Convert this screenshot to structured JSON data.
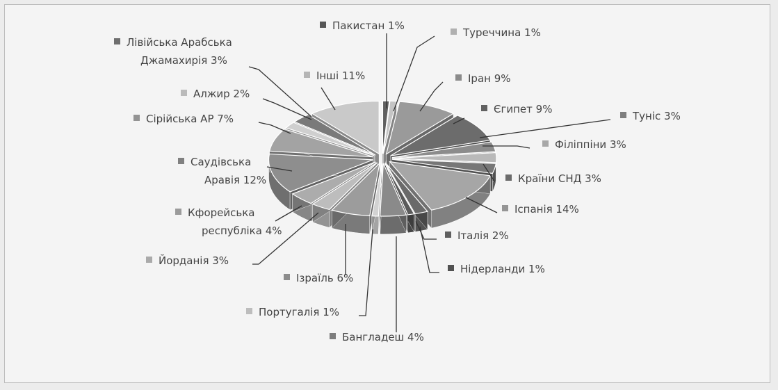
{
  "chart_data": {
    "type": "pie",
    "title": "",
    "style": "3d-exploded",
    "slices": [
      {
        "label": "Пакистан",
        "value": 1,
        "text": "Пакистан 1%",
        "color": "#5f5f5f"
      },
      {
        "label": "Туреччина",
        "value": 1,
        "text": "Туреччина 1%",
        "color": "#c4c4c4"
      },
      {
        "label": "Іран",
        "value": 9,
        "text": "Іран 9%",
        "color": "#9a9a9a"
      },
      {
        "label": "Єгипет",
        "value": 9,
        "text": "Єгипет 9%",
        "color": "#6c6c6c"
      },
      {
        "label": "Туніс",
        "value": 3,
        "text": "Туніс 3%",
        "color": "#8c8c8c"
      },
      {
        "label": "Філіппіни",
        "value": 3,
        "text": "Філіппіни 3%",
        "color": "#b9b9b9"
      },
      {
        "label": "Країни СНД",
        "value": 3,
        "text": "Країни СНД 3%",
        "color": "#777777"
      },
      {
        "label": "Іспанія",
        "value": 14,
        "text": "Іспанія 14%",
        "color": "#a6a6a6"
      },
      {
        "label": "Італія",
        "value": 2,
        "text": "Італія 2%",
        "color": "#6a6a6a"
      },
      {
        "label": "Нідерланди",
        "value": 1,
        "text": "Нідерланди 1%",
        "color": "#5a5a5a"
      },
      {
        "label": "Бангладеш",
        "value": 4,
        "text": "Бангладеш 4%",
        "color": "#8a8a8a"
      },
      {
        "label": "Португалія",
        "value": 1,
        "text": "Португалія 1%",
        "color": "#d2d2d2"
      },
      {
        "label": "Ізраїль",
        "value": 6,
        "text": "Ізраїль 6%",
        "color": "#9c9c9c"
      },
      {
        "label": "Йорданія",
        "value": 3,
        "text": "Йорданія 3%",
        "color": "#bdbdbd"
      },
      {
        "label": "Кфорейська республіка",
        "value": 4,
        "text": [
          "Кфорейська",
          "республіка 4%"
        ],
        "color": "#acacac"
      },
      {
        "label": "Саудівська Аравія",
        "value": 12,
        "text": [
          "Саудівська",
          "Аравія 12%"
        ],
        "color": "#8e8e8e"
      },
      {
        "label": "Сірійська АР",
        "value": 7,
        "text": "Сірійська АР 7%",
        "color": "#a3a3a3"
      },
      {
        "label": "Алжир",
        "value": 2,
        "text": "Алжир 2%",
        "color": "#cfcfcf"
      },
      {
        "label": "Лівійська Арабська Джамахирія",
        "value": 3,
        "text": [
          "Лівійська Арабська",
          "Джамахирія 3%"
        ],
        "color": "#7a7a7a"
      },
      {
        "label": "Інші",
        "value": 11,
        "text": "Інші 11%",
        "color": "#c9c9c9"
      }
    ]
  }
}
